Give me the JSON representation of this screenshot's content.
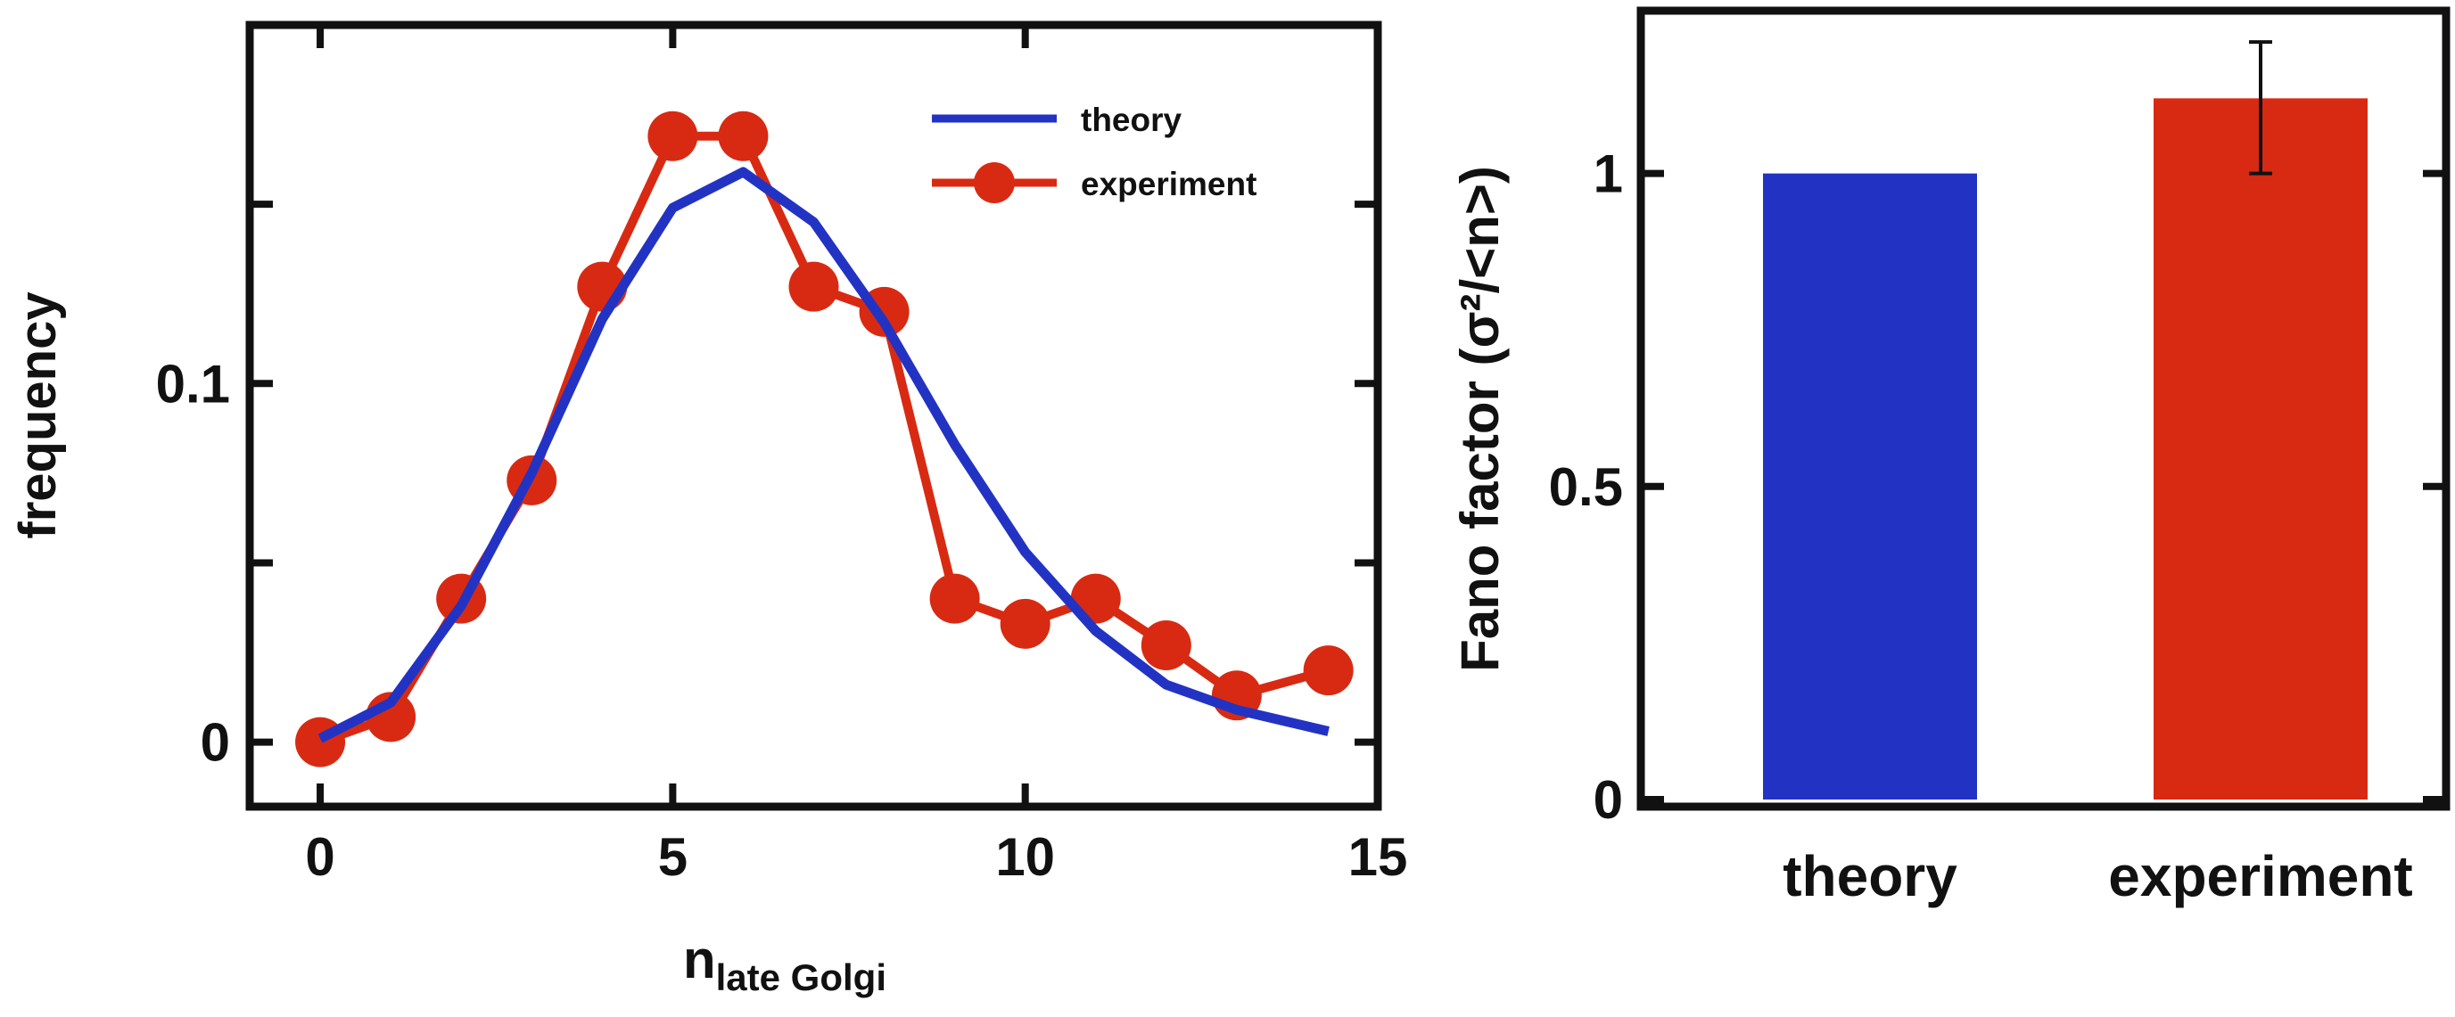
{
  "colors": {
    "theory": "#2233c4",
    "experiment": "#d82a12",
    "axis": "#111111"
  },
  "chart_data": [
    {
      "type": "line",
      "title": "",
      "xlabel": "n",
      "xlabel_subscript": "late Golgi",
      "ylabel": "frequency",
      "xlim": [
        -1,
        15
      ],
      "ylim": [
        -0.018,
        0.2
      ],
      "xticks": [
        0,
        5,
        10,
        15
      ],
      "xtick_labels": [
        "0",
        "5",
        "10",
        "15"
      ],
      "yticks": [
        0,
        0.05,
        0.1,
        0.15
      ],
      "ytick_labels": [
        "0",
        "",
        "0.1",
        ""
      ],
      "legend_position": "top-right",
      "series": [
        {
          "name": "theory",
          "marker": "none",
          "x": [
            0,
            1,
            2,
            3,
            4,
            5,
            6,
            7,
            8,
            9,
            10,
            11,
            12,
            13,
            14.3
          ],
          "y": [
            0.001,
            0.011,
            0.038,
            0.075,
            0.118,
            0.149,
            0.159,
            0.145,
            0.117,
            0.083,
            0.053,
            0.031,
            0.016,
            0.009,
            0.003
          ]
        },
        {
          "name": "experiment",
          "marker": "circle",
          "x": [
            0,
            1,
            2,
            3,
            4,
            5,
            6,
            7,
            8,
            9,
            10,
            11,
            12,
            13,
            14.3
          ],
          "y": [
            0,
            0.007,
            0.04,
            0.073,
            0.127,
            0.169,
            0.169,
            0.127,
            0.12,
            0.04,
            0.033,
            0.04,
            0.027,
            0.013,
            0.02
          ]
        }
      ]
    },
    {
      "type": "bar",
      "title": "",
      "xlabel": "",
      "ylabel": "Fano factor (σ²/<n>)",
      "ylim": [
        0,
        1.26
      ],
      "yticks": [
        0,
        0.5,
        1
      ],
      "ytick_labels": [
        "0",
        "0.5",
        "1"
      ],
      "categories": [
        "theory",
        "experiment"
      ],
      "values": [
        1.0,
        1.12
      ],
      "error_bars": [
        null,
        [
          1.0,
          1.21
        ]
      ]
    }
  ]
}
